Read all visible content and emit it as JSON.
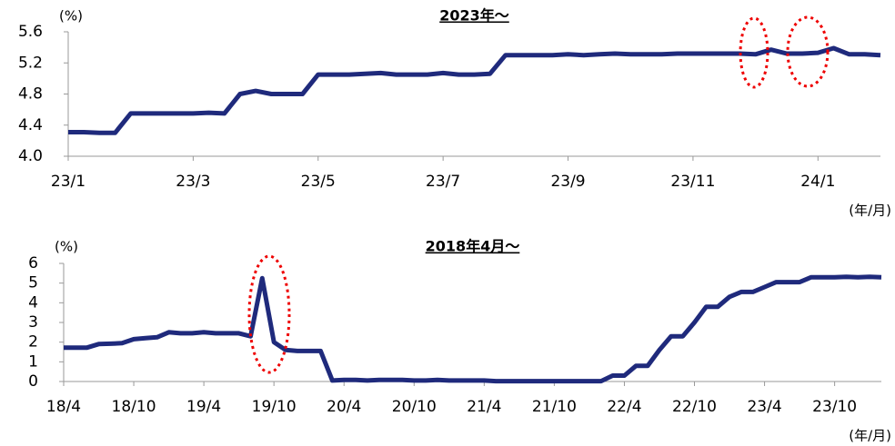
{
  "chart_data": [
    {
      "type": "line",
      "title": "2023年～",
      "y_unit": "(%)",
      "x_unit": "(年/月)",
      "color": "#1f2a7c",
      "grid": false,
      "categories": [
        "23/1",
        null,
        null,
        null,
        null,
        null,
        null,
        null,
        "23/3",
        null,
        null,
        null,
        null,
        null,
        null,
        null,
        "23/5",
        null,
        null,
        null,
        null,
        null,
        null,
        null,
        "23/7",
        null,
        null,
        null,
        null,
        null,
        null,
        null,
        "23/9",
        null,
        null,
        null,
        null,
        null,
        null,
        null,
        "23/11",
        null,
        null,
        null,
        null,
        null,
        null,
        null,
        "24/1",
        null,
        null,
        null,
        null
      ],
      "values": [
        4.31,
        4.31,
        4.3,
        4.3,
        4.55,
        4.55,
        4.55,
        4.55,
        4.55,
        4.56,
        4.55,
        4.8,
        4.84,
        4.8,
        4.8,
        4.8,
        5.05,
        5.05,
        5.05,
        5.06,
        5.07,
        5.05,
        5.05,
        5.05,
        5.07,
        5.05,
        5.05,
        5.06,
        5.3,
        5.3,
        5.3,
        5.3,
        5.31,
        5.3,
        5.31,
        5.32,
        5.31,
        5.31,
        5.31,
        5.32,
        5.32,
        5.32,
        5.32,
        5.32,
        5.31,
        5.37,
        5.32,
        5.32,
        5.33,
        5.39,
        5.31,
        5.31,
        5.3
      ],
      "ylim": [
        4.0,
        5.6
      ],
      "yticks": [
        {
          "value": 4.0,
          "label": "4.0"
        },
        4.4,
        4.8,
        5.2,
        5.6
      ]
    },
    {
      "type": "line",
      "title": "2018年4月～",
      "y_unit": "(%)",
      "x_unit": "(年/月)",
      "color": "#1f2a7c",
      "grid": false,
      "categories": [
        "18/4",
        null,
        null,
        null,
        null,
        null,
        "18/10",
        null,
        null,
        null,
        null,
        null,
        "19/4",
        null,
        null,
        null,
        null,
        null,
        "19/10",
        null,
        null,
        null,
        null,
        null,
        "20/4",
        null,
        null,
        null,
        null,
        null,
        "20/10",
        null,
        null,
        null,
        null,
        null,
        "21/4",
        null,
        null,
        null,
        null,
        null,
        "21/10",
        null,
        null,
        null,
        null,
        null,
        "22/4",
        null,
        null,
        null,
        null,
        null,
        "22/10",
        null,
        null,
        null,
        null,
        null,
        "23/4",
        null,
        null,
        null,
        null,
        null,
        "23/10",
        null,
        null,
        null,
        null
      ],
      "values": [
        1.72,
        1.72,
        1.72,
        1.9,
        1.92,
        1.95,
        2.15,
        2.2,
        2.25,
        2.5,
        2.45,
        2.45,
        2.5,
        2.45,
        2.45,
        2.45,
        2.3,
        5.25,
        2.0,
        1.6,
        1.55,
        1.55,
        1.55,
        0.05,
        0.08,
        0.08,
        0.05,
        0.08,
        0.08,
        0.08,
        0.05,
        0.05,
        0.08,
        0.05,
        0.05,
        0.05,
        0.05,
        0.02,
        0.02,
        0.02,
        0.02,
        0.02,
        0.02,
        0.02,
        0.02,
        0.02,
        0.02,
        0.3,
        0.3,
        0.8,
        0.8,
        1.6,
        2.3,
        2.3,
        3.0,
        3.8,
        3.8,
        4.3,
        4.55,
        4.55,
        4.8,
        5.05,
        5.05,
        5.05,
        5.3,
        5.3,
        5.3,
        5.32,
        5.3,
        5.32,
        5.3
      ],
      "ylim": [
        0,
        6
      ],
      "yticks": [
        0,
        1,
        2,
        3,
        4,
        5,
        6
      ]
    }
  ]
}
